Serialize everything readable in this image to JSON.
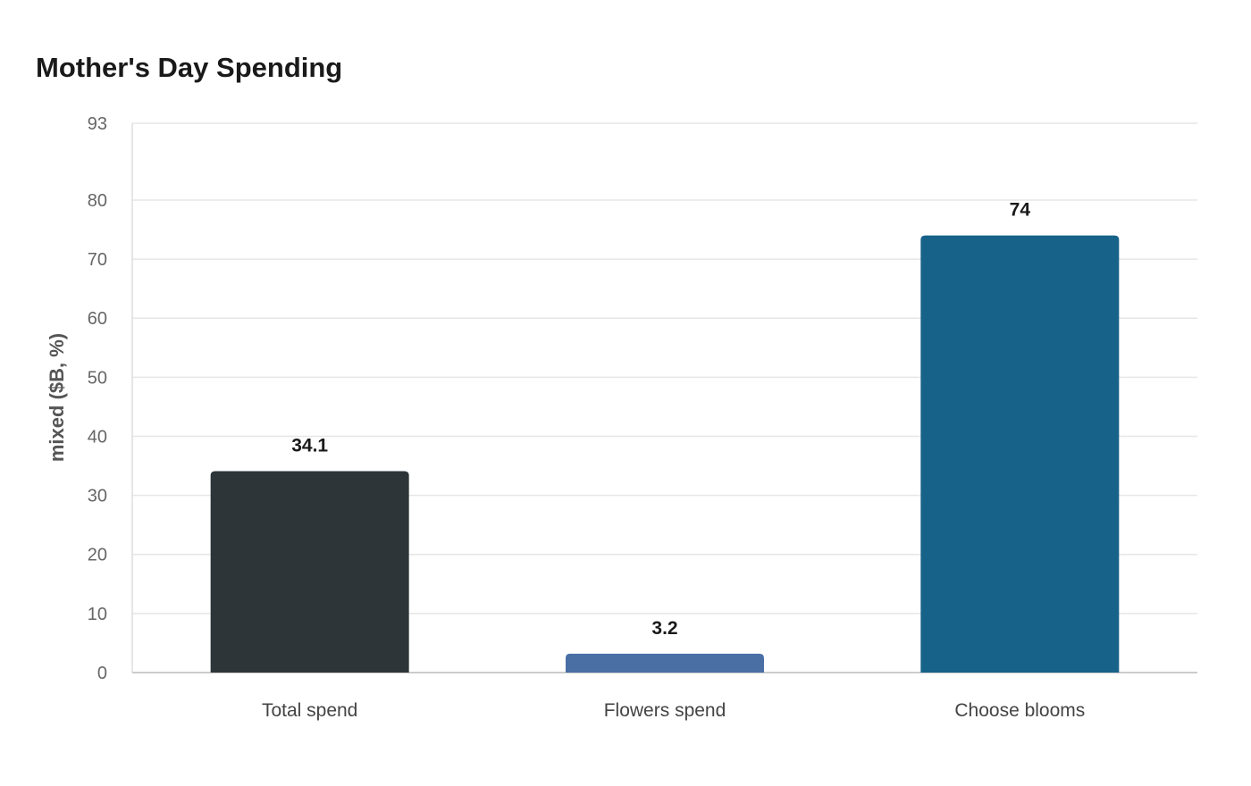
{
  "chart_data": {
    "type": "bar",
    "title": "Mother's Day Spending",
    "xlabel": "",
    "ylabel": "mixed ($B, %)",
    "categories": [
      "Total spend",
      "Flowers spend",
      "Choose blooms"
    ],
    "values": [
      34.1,
      3.2,
      74
    ],
    "value_labels": [
      "34.1",
      "3.2",
      "74"
    ],
    "colors": [
      "#2e3538",
      "#4a6fa5",
      "#176289"
    ],
    "ylim": [
      0,
      93
    ],
    "yticks": [
      0,
      10,
      20,
      30,
      40,
      50,
      60,
      70,
      80,
      93
    ],
    "grid": true,
    "legend": "none"
  }
}
